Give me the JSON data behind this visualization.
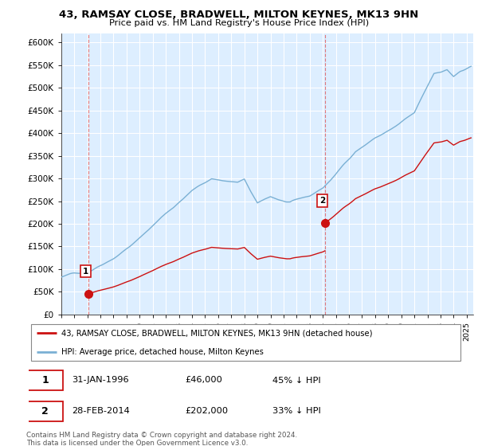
{
  "title1": "43, RAMSAY CLOSE, BRADWELL, MILTON KEYNES, MK13 9HN",
  "title2": "Price paid vs. HM Land Registry's House Price Index (HPI)",
  "legend_label1": "43, RAMSAY CLOSE, BRADWELL, MILTON KEYNES, MK13 9HN (detached house)",
  "legend_label2": "HPI: Average price, detached house, Milton Keynes",
  "point1_date": "31-JAN-1996",
  "point1_price": "£46,000",
  "point1_hpi": "45% ↓ HPI",
  "point2_date": "28-FEB-2014",
  "point2_price": "£202,000",
  "point2_hpi": "33% ↓ HPI",
  "footer": "Contains HM Land Registry data © Crown copyright and database right 2024.\nThis data is licensed under the Open Government Licence v3.0.",
  "line1_color": "#cc1111",
  "line2_color": "#7ab0d4",
  "point_color": "#cc1111",
  "bg_color": "#ddeeff",
  "grid_color": "#ffffff",
  "ylim": [
    0,
    620000
  ],
  "yticks": [
    0,
    50000,
    100000,
    150000,
    200000,
    250000,
    300000,
    350000,
    400000,
    450000,
    500000,
    550000,
    600000
  ],
  "xlim_start": 1994.25,
  "xlim_end": 2025.5,
  "p1_year": 1996.083,
  "p1_price": 46000,
  "p2_year": 2014.167,
  "p2_price": 202000
}
